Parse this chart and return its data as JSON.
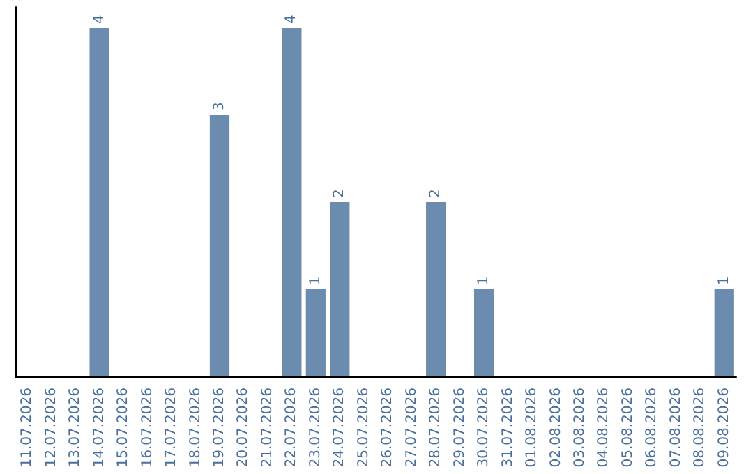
{
  "chart_data": {
    "type": "bar",
    "categories": [
      "11.07.2026",
      "12.07.2026",
      "13.07.2026",
      "14.07.2026",
      "15.07.2026",
      "16.07.2026",
      "17.07.2026",
      "18.07.2026",
      "19.07.2026",
      "20.07.2026",
      "21.07.2026",
      "22.07.2026",
      "23.07.2026",
      "24.07.2026",
      "25.07.2026",
      "26.07.2026",
      "27.07.2026",
      "28.07.2026",
      "29.07.2026",
      "30.07.2026",
      "31.07.2026",
      "01.08.2026",
      "02.08.2026",
      "03.08.2026",
      "04.08.2026",
      "05.08.2026",
      "06.08.2026",
      "07.08.2026",
      "08.08.2026",
      "09.08.2026"
    ],
    "values": [
      0,
      0,
      0,
      4,
      0,
      0,
      0,
      0,
      3,
      0,
      0,
      4,
      1,
      2,
      0,
      0,
      0,
      2,
      0,
      1,
      0,
      0,
      0,
      0,
      0,
      0,
      0,
      0,
      0,
      1
    ],
    "value_labels": [
      null,
      null,
      null,
      "4",
      null,
      null,
      null,
      null,
      "3",
      null,
      null,
      "4",
      "1",
      "2",
      null,
      null,
      null,
      "2",
      null,
      "1",
      null,
      null,
      null,
      null,
      null,
      null,
      null,
      null,
      null,
      "1"
    ],
    "color": "#6b8cae",
    "grid": false,
    "tick_labels": "x"
  }
}
